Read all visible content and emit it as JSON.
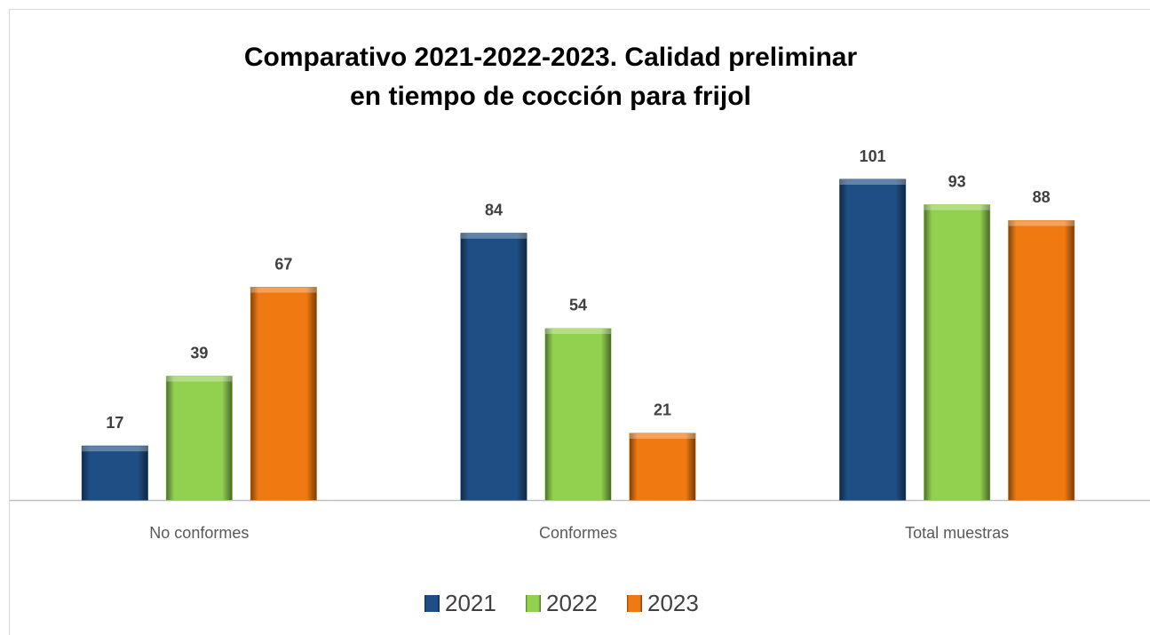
{
  "chart_data": {
    "type": "bar",
    "title": [
      "Comparativo 2021-2022-2023. Calidad preliminar",
      "en tiempo de cocción para frijol"
    ],
    "categories": [
      "No conformes",
      "Conformes",
      "Total muestras"
    ],
    "series": [
      {
        "name": "2021",
        "color": "#1f4e84",
        "values": [
          17,
          84,
          101
        ]
      },
      {
        "name": "2022",
        "color": "#92d050",
        "values": [
          39,
          54,
          93
        ]
      },
      {
        "name": "2023",
        "color": "#f07a12",
        "values": [
          67,
          21,
          88
        ]
      }
    ],
    "legend": "bottom"
  }
}
